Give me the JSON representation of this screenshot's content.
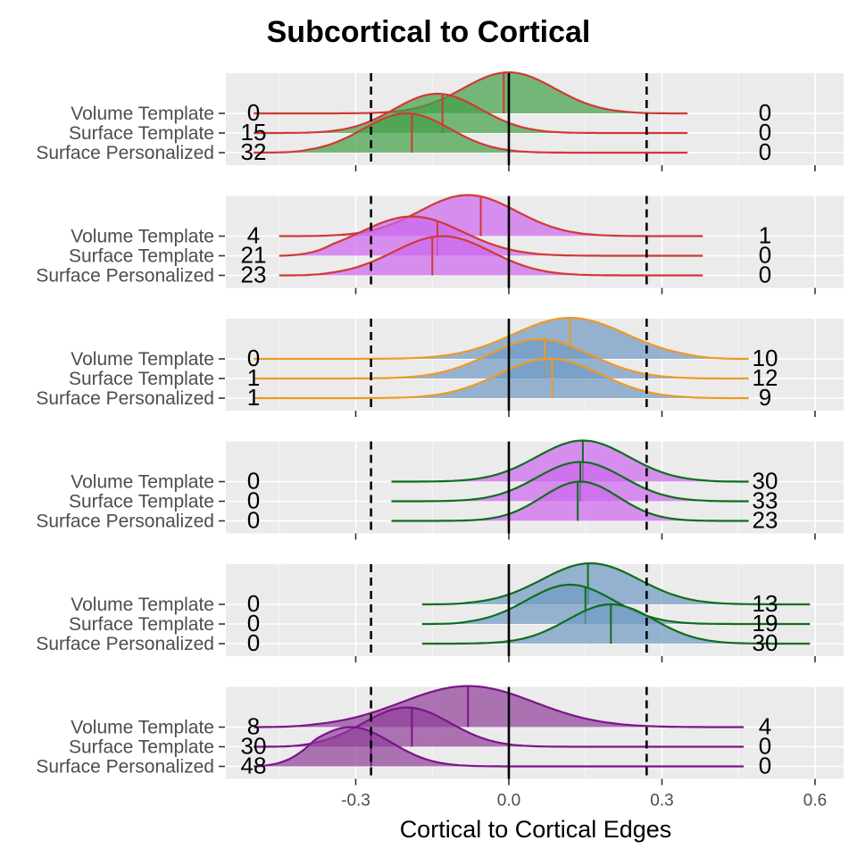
{
  "chart_data": {
    "type": "ridgeline",
    "title": "Subcortical to Cortical",
    "xlabel": "Cortical to Cortical Edges",
    "ylabel": "",
    "xlim": [
      -0.55,
      0.65
    ],
    "x_ticks": [
      -0.3,
      0.0,
      0.3,
      0.6
    ],
    "x_tick_labels": [
      "-0.3",
      "0.0",
      "0.3",
      "0.6"
    ],
    "reference_lines": {
      "solid": 0.0,
      "dashed": [
        -0.27,
        0.27
      ]
    },
    "grid": true,
    "rows": [
      "Volume Template",
      "Surface Template",
      "Surface Personalized"
    ],
    "panels": [
      {
        "fill": "#41a046",
        "line": "#d03a35",
        "rows": [
          {
            "label": "Volume Template",
            "left_count": "0",
            "right_count": "0",
            "range": [
              -0.5,
              0.35
            ],
            "median": -0.01,
            "peak": 0.0,
            "spread": 0.09
          },
          {
            "label": "Surface Template",
            "left_count": "15",
            "right_count": "0",
            "range": [
              -0.5,
              0.35
            ],
            "median": -0.13,
            "peak": -0.14,
            "spread": 0.085
          },
          {
            "label": "Surface Personalized",
            "left_count": "32",
            "right_count": "0",
            "range": [
              -0.5,
              0.35
            ],
            "median": -0.19,
            "peak": -0.2,
            "spread": 0.085
          }
        ]
      },
      {
        "fill": "#cc66ee",
        "line": "#d03a35",
        "rows": [
          {
            "label": "Volume Template",
            "left_count": "4",
            "right_count": "1",
            "range": [
              -0.45,
              0.38
            ],
            "median": -0.055,
            "peak": -0.08,
            "spread": 0.095
          },
          {
            "label": "Surface Template",
            "left_count": "21",
            "right_count": "0",
            "range": [
              -0.45,
              0.38
            ],
            "median": -0.14,
            "peak": -0.19,
            "spread": 0.1
          },
          {
            "label": "Surface Personalized",
            "left_count": "23",
            "right_count": "0",
            "range": [
              -0.45,
              0.38
            ],
            "median": -0.15,
            "peak": -0.13,
            "spread": 0.095
          }
        ]
      },
      {
        "fill": "#6f9ac3",
        "line": "#ee9a24",
        "rows": [
          {
            "label": "Volume Template",
            "left_count": "0",
            "right_count": "10",
            "range": [
              -0.5,
              0.47
            ],
            "median": 0.12,
            "peak": 0.12,
            "spread": 0.11
          },
          {
            "label": "Surface Template",
            "left_count": "1",
            "right_count": "12",
            "range": [
              -0.5,
              0.47
            ],
            "median": 0.07,
            "peak": 0.06,
            "spread": 0.1
          },
          {
            "label": "Surface Personalized",
            "left_count": "1",
            "right_count": "9",
            "range": [
              -0.5,
              0.47
            ],
            "median": 0.085,
            "peak": 0.08,
            "spread": 0.1
          }
        ]
      },
      {
        "fill": "#cc66ee",
        "line": "#0f6e1c",
        "rows": [
          {
            "label": "Volume Template",
            "left_count": "0",
            "right_count": "30",
            "range": [
              -0.23,
              0.47
            ],
            "median": 0.145,
            "peak": 0.145,
            "spread": 0.09
          },
          {
            "label": "Surface Template",
            "left_count": "0",
            "right_count": "33",
            "range": [
              -0.23,
              0.47
            ],
            "median": 0.14,
            "peak": 0.14,
            "spread": 0.085
          },
          {
            "label": "Surface Personalized",
            "left_count": "0",
            "right_count": "23",
            "range": [
              -0.23,
              0.47
            ],
            "median": 0.135,
            "peak": 0.14,
            "spread": 0.075
          }
        ]
      },
      {
        "fill": "#6f9ac3",
        "line": "#0f6e1c",
        "rows": [
          {
            "label": "Volume Template",
            "left_count": "0",
            "right_count": "13",
            "range": [
              -0.17,
              0.59
            ],
            "median": 0.155,
            "peak": 0.16,
            "spread": 0.095
          },
          {
            "label": "Surface Template",
            "left_count": "0",
            "right_count": "19",
            "range": [
              -0.17,
              0.59
            ],
            "median": 0.15,
            "peak": 0.12,
            "spread": 0.085
          },
          {
            "label": "Surface Personalized",
            "left_count": "0",
            "right_count": "30",
            "range": [
              -0.17,
              0.59
            ],
            "median": 0.2,
            "peak": 0.2,
            "spread": 0.085
          }
        ]
      },
      {
        "fill": "#8e3f99",
        "line": "#7c1589",
        "rows": [
          {
            "label": "Volume Template",
            "left_count": "8",
            "right_count": "4",
            "range": [
              -0.5,
              0.46
            ],
            "median": -0.08,
            "peak": -0.08,
            "spread": 0.13
          },
          {
            "label": "Surface Template",
            "left_count": "30",
            "right_count": "0",
            "range": [
              -0.5,
              0.46
            ],
            "median": -0.19,
            "peak": -0.2,
            "spread": 0.085
          },
          {
            "label": "Surface Personalized",
            "left_count": "48",
            "right_count": "0",
            "range": [
              -0.5,
              0.46
            ],
            "median": -0.27,
            "peak": -0.31,
            "spread": 0.08
          }
        ]
      }
    ]
  }
}
